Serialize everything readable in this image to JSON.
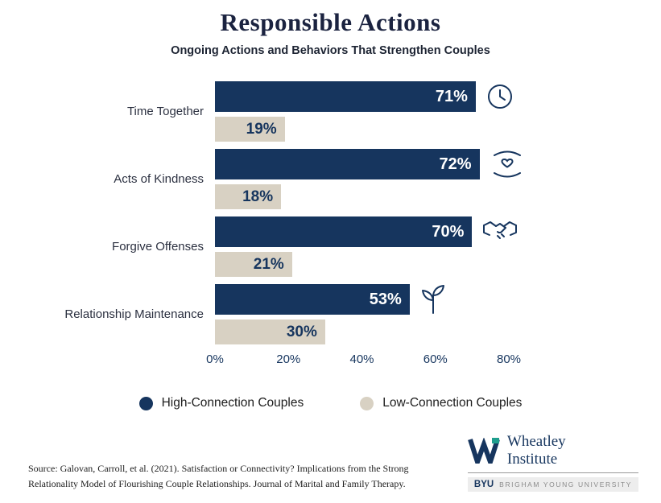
{
  "title": "Responsible Actions",
  "subtitle": "Ongoing Actions and Behaviors That Strengthen Couples",
  "chart_data": {
    "type": "bar",
    "orientation": "horizontal",
    "title": "Responsible Actions",
    "subtitle": "Ongoing Actions and Behaviors That Strengthen Couples",
    "categories": [
      "Time Together",
      "Acts of Kindness",
      "Forgive Offenses",
      "Relationship Maintenance"
    ],
    "series": [
      {
        "name": "High-Connection Couples",
        "color": "#16355e",
        "values": [
          71,
          72,
          70,
          53
        ]
      },
      {
        "name": "Low-Connection Couples",
        "color": "#d8d1c3",
        "values": [
          19,
          18,
          21,
          30
        ]
      }
    ],
    "value_suffix": "%",
    "xlim": [
      0,
      80
    ],
    "x_ticks": [
      "0%",
      "20%",
      "40%",
      "60%",
      "80%"
    ],
    "icons": [
      "clock-icon",
      "hands-heart-icon",
      "handshake-icon",
      "sprout-icon"
    ],
    "grid": false,
    "legend_position": "bottom"
  },
  "legend": {
    "items": [
      {
        "label": "High-Connection Couples",
        "color": "#16355e"
      },
      {
        "label": "Low-Connection Couples",
        "color": "#d8d1c3"
      }
    ]
  },
  "footer": {
    "source_line1": "Source: Galovan, Carroll, et al. (2021). Satisfaction or Connectivity? Implications from the Strong",
    "source_line2": "Relationality Model of Flourishing Couple Relationships. Journal of Marital and Family Therapy.",
    "logo": {
      "name_line1": "Wheatley",
      "name_line2": "Institute",
      "byu": "BYU",
      "university": "BRIGHAM YOUNG UNIVERSITY"
    }
  },
  "colors": {
    "navy": "#16355e",
    "tan": "#d8d1c3",
    "teal": "#1f9e8e"
  }
}
